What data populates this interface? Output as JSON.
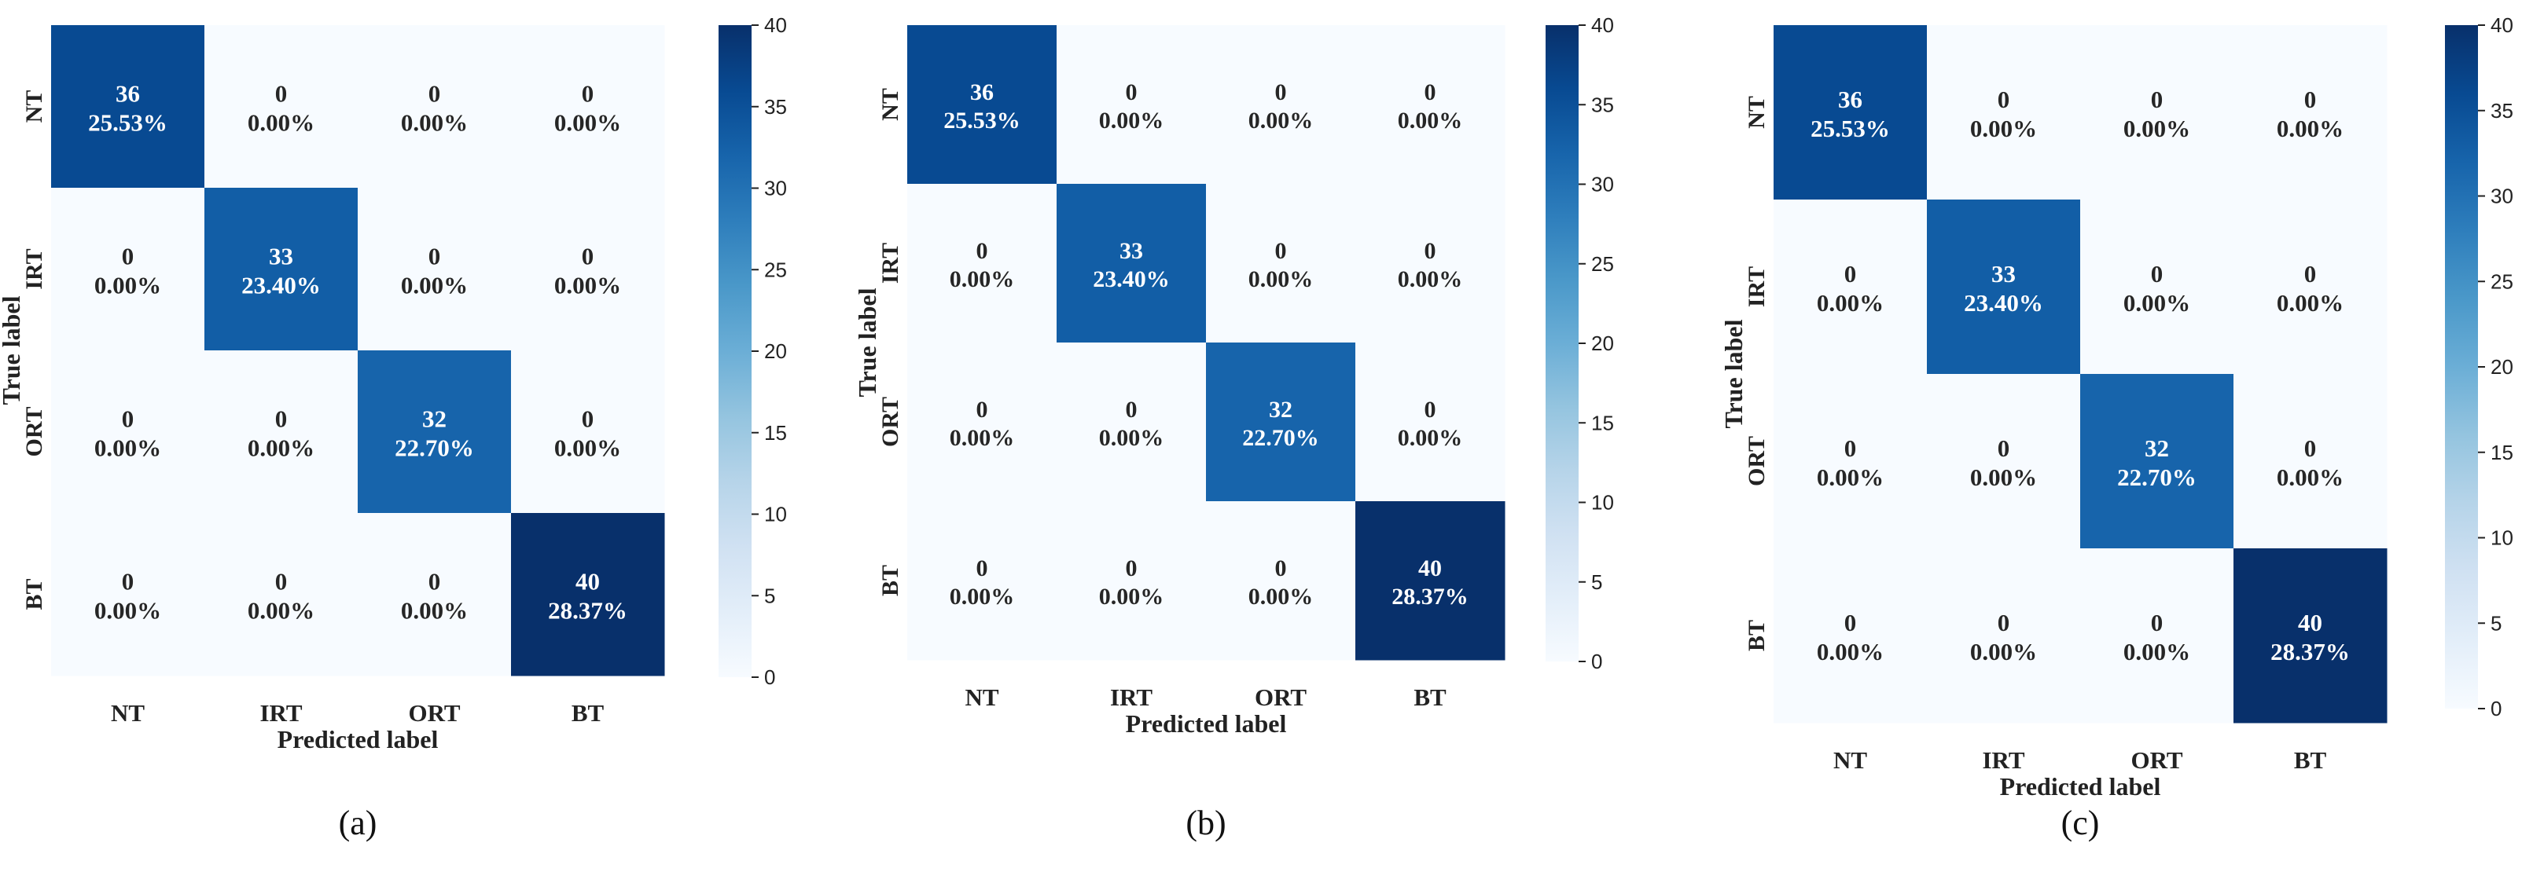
{
  "chart_data": [
    {
      "type": "heatmap",
      "panel": "a",
      "title": "",
      "xlabel": "Predicted label",
      "ylabel": "True label",
      "x_categories": [
        "NT",
        "IRT",
        "ORT",
        "BT"
      ],
      "y_categories": [
        "NT",
        "IRT",
        "ORT",
        "BT"
      ],
      "counts": [
        [
          36,
          0,
          0,
          0
        ],
        [
          0,
          33,
          0,
          0
        ],
        [
          0,
          0,
          32,
          0
        ],
        [
          0,
          0,
          0,
          40
        ]
      ],
      "percents": [
        [
          "25.53%",
          "0.00%",
          "0.00%",
          "0.00%"
        ],
        [
          "0.00%",
          "23.40%",
          "0.00%",
          "0.00%"
        ],
        [
          "0.00%",
          "0.00%",
          "22.70%",
          "0.00%"
        ],
        [
          "0.00%",
          "0.00%",
          "0.00%",
          "28.37%"
        ]
      ],
      "colorbar": {
        "min": 0,
        "max": 40,
        "ticks": [
          0,
          5,
          10,
          15,
          20,
          25,
          30,
          35,
          40
        ],
        "colormap": "Blues"
      }
    },
    {
      "type": "heatmap",
      "panel": "b",
      "title": "",
      "xlabel": "Predicted label",
      "ylabel": "True label",
      "x_categories": [
        "NT",
        "IRT",
        "ORT",
        "BT"
      ],
      "y_categories": [
        "NT",
        "IRT",
        "ORT",
        "BT"
      ],
      "counts": [
        [
          36,
          0,
          0,
          0
        ],
        [
          0,
          33,
          0,
          0
        ],
        [
          0,
          0,
          32,
          0
        ],
        [
          0,
          0,
          0,
          40
        ]
      ],
      "percents": [
        [
          "25.53%",
          "0.00%",
          "0.00%",
          "0.00%"
        ],
        [
          "0.00%",
          "23.40%",
          "0.00%",
          "0.00%"
        ],
        [
          "0.00%",
          "0.00%",
          "22.70%",
          "0.00%"
        ],
        [
          "0.00%",
          "0.00%",
          "0.00%",
          "28.37%"
        ]
      ],
      "colorbar": {
        "min": 0,
        "max": 40,
        "ticks": [
          0,
          5,
          10,
          15,
          20,
          25,
          30,
          35,
          40
        ],
        "colormap": "Blues"
      }
    },
    {
      "type": "heatmap",
      "panel": "c",
      "title": "",
      "xlabel": "Predicted label",
      "ylabel": "True label",
      "x_categories": [
        "NT",
        "IRT",
        "ORT",
        "BT"
      ],
      "y_categories": [
        "NT",
        "IRT",
        "ORT",
        "BT"
      ],
      "counts": [
        [
          36,
          0,
          0,
          0
        ],
        [
          0,
          33,
          0,
          0
        ],
        [
          0,
          0,
          32,
          0
        ],
        [
          0,
          0,
          0,
          40
        ]
      ],
      "percents": [
        [
          "25.53%",
          "0.00%",
          "0.00%",
          "0.00%"
        ],
        [
          "0.00%",
          "23.40%",
          "0.00%",
          "0.00%"
        ],
        [
          "0.00%",
          "0.00%",
          "22.70%",
          "0.00%"
        ],
        [
          "0.00%",
          "0.00%",
          "0.00%",
          "28.37%"
        ]
      ],
      "colorbar": {
        "min": 0,
        "max": 40,
        "ticks": [
          0,
          5,
          10,
          15,
          20,
          25,
          30,
          35,
          40
        ],
        "colormap": "Blues"
      }
    }
  ],
  "panel_labels": [
    "(a)",
    "(b)",
    "(c)"
  ],
  "colors": {
    "cmap_low": "#f7fbff",
    "cmap_high": "#08306b",
    "text_light": "#ffffff",
    "text_dark": "#262626"
  }
}
